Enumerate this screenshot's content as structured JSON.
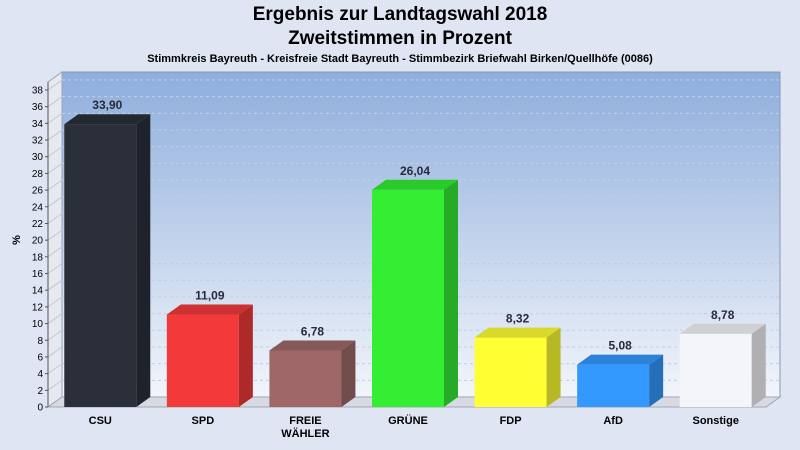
{
  "chart_data": {
    "type": "bar",
    "title": "Ergebnis zur Landtagswahl 2018",
    "subtitle": "Zweitstimmen in Prozent",
    "caption": "Stimmkreis Bayreuth - Kreisfreie Stadt Bayreuth - Stimmbezirk Briefwahl Birken/Quellhöfe (0086)",
    "ylabel": "%",
    "xlabel": "",
    "ylim": [
      0,
      38
    ],
    "yticks": [
      0,
      2,
      4,
      6,
      8,
      10,
      12,
      14,
      16,
      18,
      20,
      22,
      24,
      26,
      28,
      30,
      32,
      34,
      36,
      38
    ],
    "grid": true,
    "categories": [
      [
        "CSU"
      ],
      [
        "SPD"
      ],
      [
        "FREIE",
        "WÄHLER"
      ],
      [
        "GRÜNE"
      ],
      [
        "FDP"
      ],
      [
        "AfD"
      ],
      [
        "Sonstige"
      ]
    ],
    "values": [
      33.9,
      11.09,
      6.78,
      26.04,
      8.32,
      5.08,
      8.78
    ],
    "value_labels": [
      "33,90",
      "11,09",
      "6,78",
      "26,04",
      "8,32",
      "5,08",
      "8,78"
    ],
    "colors": [
      "#2a2f3a",
      "#f23a3a",
      "#9e6868",
      "#33ee33",
      "#ffff33",
      "#3399ff",
      "#f4f5f9"
    ]
  }
}
